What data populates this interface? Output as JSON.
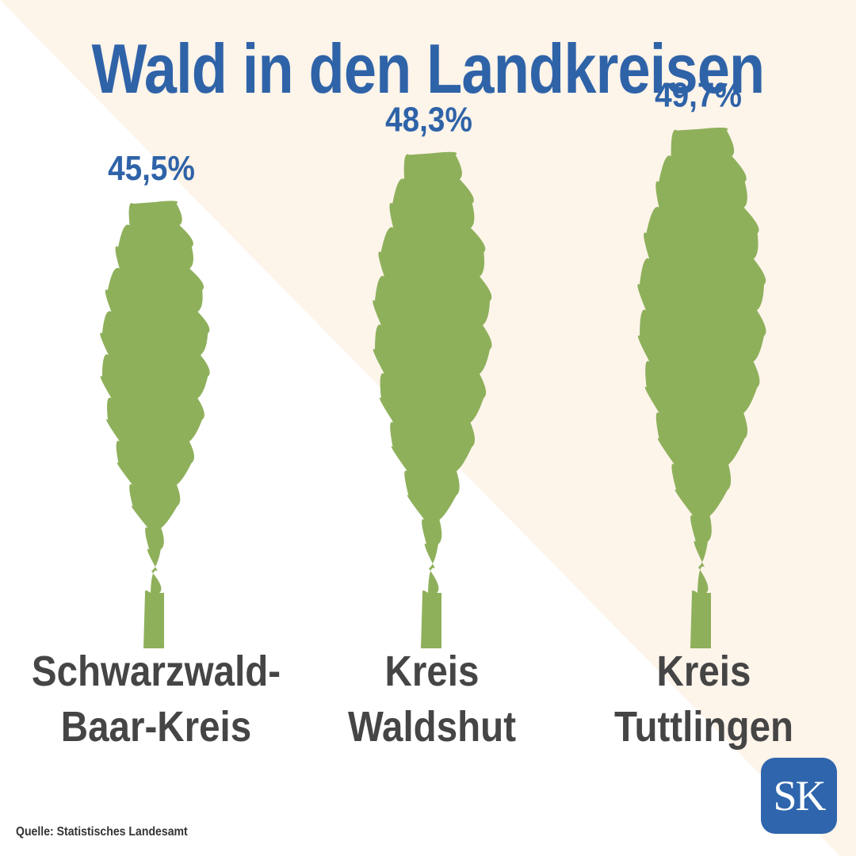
{
  "title": "Wald in den Landkreisen",
  "source": "Quelle: Statistisches Landesamt",
  "logo_text": "SK",
  "colors": {
    "title": "#2f63a8",
    "value_label": "#2f63a8",
    "tree": "#8eb05b",
    "category_label": "#454545",
    "background_stripe": "#fdf4ea",
    "logo_background": "#2e65ad"
  },
  "chart_data": {
    "type": "bar",
    "mark": "tree-pictogram",
    "title": "Wald in den Landkreisen",
    "unit": "%",
    "categories": [
      "Schwarzwald-Baar-Kreis",
      "Kreis Waldshut",
      "Kreis Tuttlingen"
    ],
    "category_lines": [
      [
        "Schwarzwald-",
        "Baar-Kreis"
      ],
      [
        "Kreis",
        "Waldshut"
      ],
      [
        "Kreis",
        "Tuttlingen"
      ]
    ],
    "values": [
      45.5,
      48.3,
      49.7
    ],
    "value_labels": [
      "45,5%",
      "48,3%",
      "49,7%"
    ]
  }
}
